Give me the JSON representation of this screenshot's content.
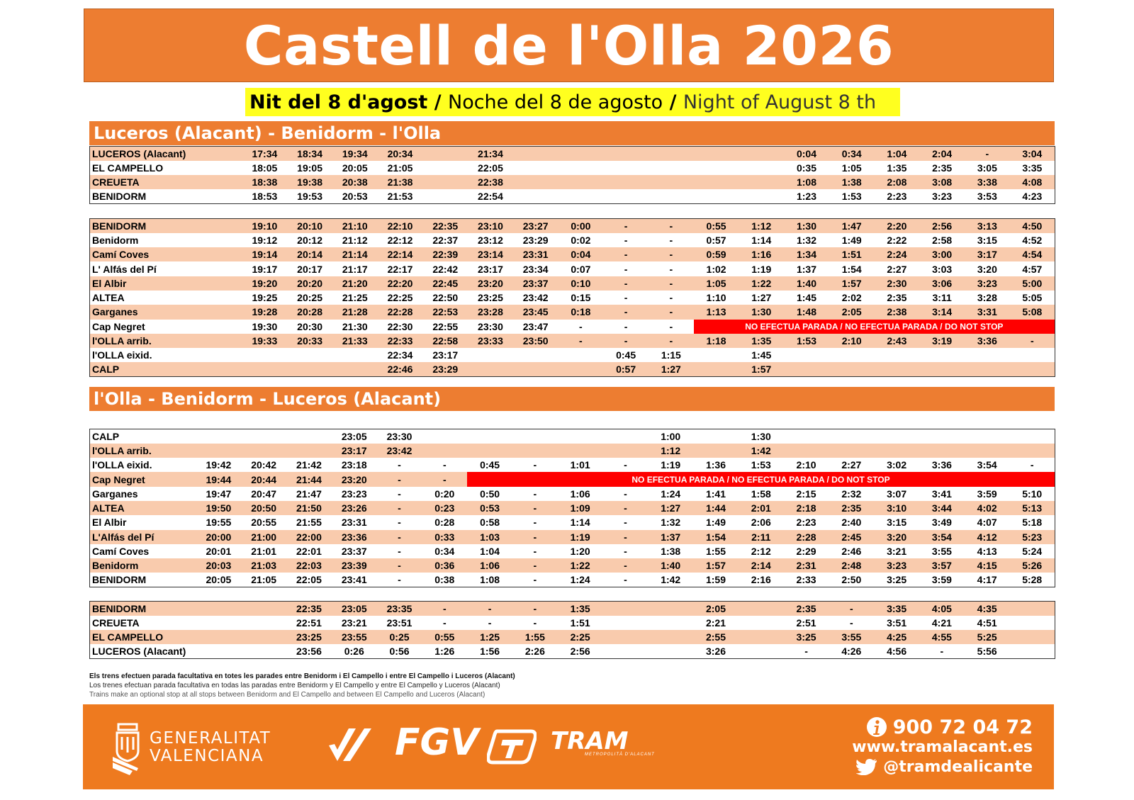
{
  "title": "Castell de l'Olla 2026",
  "subtitle": {
    "valencian": "Nit del 8 d'agost",
    "spanish": "Noche del 8 de agosto",
    "english": "Night of August 8 th",
    "separator": "/"
  },
  "sections": [
    {
      "title": "Luceros (Alacant) - Benidorm - l'Olla"
    },
    {
      "title": "l'Olla - Benidorm - Luceros (Alacant)"
    }
  ],
  "no_stop_text": "NO EFECTUA PARADA / NO EFECTUA PARADA / DO NOT STOP",
  "tables": [
    {
      "id": "t1",
      "rows": [
        {
          "style": "o",
          "cells": [
            "LUCEROS (Alacant)",
            "17:34",
            "18:34",
            "19:34",
            "20:34",
            "",
            "21:34",
            "",
            "",
            "",
            "",
            "",
            "",
            "0:04",
            "0:34",
            "1:04",
            "2:04",
            "-",
            "3:04"
          ]
        },
        {
          "style": "w",
          "cells": [
            "EL CAMPELLO",
            "18:05",
            "19:05",
            "20:05",
            "21:05",
            "",
            "22:05",
            "",
            "",
            "",
            "",
            "",
            "",
            "0:35",
            "1:05",
            "1:35",
            "2:35",
            "3:05",
            "3:35"
          ]
        },
        {
          "style": "o",
          "cells": [
            "CREUETA",
            "18:38",
            "19:38",
            "20:38",
            "21:38",
            "",
            "22:38",
            "",
            "",
            "",
            "",
            "",
            "",
            "1:08",
            "1:38",
            "2:08",
            "3:08",
            "3:38",
            "4:08"
          ]
        },
        {
          "style": "w",
          "cells": [
            "BENIDORM",
            "18:53",
            "19:53",
            "20:53",
            "21:53",
            "",
            "22:54",
            "",
            "",
            "",
            "",
            "",
            "",
            "1:23",
            "1:53",
            "2:23",
            "3:23",
            "3:53",
            "4:23"
          ]
        }
      ]
    },
    {
      "id": "t2",
      "rows": [
        {
          "style": "o",
          "cells": [
            "BENIDORM",
            "19:10",
            "20:10",
            "21:10",
            "22:10",
            "22:35",
            "23:10",
            "23:27",
            "0:00",
            "-",
            "-",
            "0:55",
            "1:12",
            "1:30",
            "1:47",
            "2:20",
            "2:56",
            "3:13",
            "4:50"
          ]
        },
        {
          "style": "w",
          "cells": [
            "Benidorm",
            "19:12",
            "20:12",
            "21:12",
            "22:12",
            "22:37",
            "23:12",
            "23:29",
            "0:02",
            "-",
            "-",
            "0:57",
            "1:14",
            "1:32",
            "1:49",
            "2:22",
            "2:58",
            "3:15",
            "4:52"
          ]
        },
        {
          "style": "o",
          "cells": [
            "Camí Coves",
            "19:14",
            "20:14",
            "21:14",
            "22:14",
            "22:39",
            "23:14",
            "23:31",
            "0:04",
            "-",
            "-",
            "0:59",
            "1:16",
            "1:34",
            "1:51",
            "2:24",
            "3:00",
            "3:17",
            "4:54"
          ]
        },
        {
          "style": "w",
          "cells": [
            "L' Alfás del Pí",
            "19:17",
            "20:17",
            "21:17",
            "22:17",
            "22:42",
            "23:17",
            "23:34",
            "0:07",
            "-",
            "-",
            "1:02",
            "1:19",
            "1:37",
            "1:54",
            "2:27",
            "3:03",
            "3:20",
            "4:57"
          ]
        },
        {
          "style": "o",
          "cells": [
            "El Albir",
            "19:20",
            "20:20",
            "21:20",
            "22:20",
            "22:45",
            "23:20",
            "23:37",
            "0:10",
            "-",
            "-",
            "1:05",
            "1:22",
            "1:40",
            "1:57",
            "2:30",
            "3:06",
            "3:23",
            "5:00"
          ]
        },
        {
          "style": "w",
          "cells": [
            "ALTEA",
            "19:25",
            "20:25",
            "21:25",
            "22:25",
            "22:50",
            "23:25",
            "23:42",
            "0:15",
            "-",
            "-",
            "1:10",
            "1:27",
            "1:45",
            "2:02",
            "2:35",
            "3:11",
            "3:28",
            "5:05"
          ]
        },
        {
          "style": "o",
          "cells": [
            "Garganes",
            "19:28",
            "20:28",
            "21:28",
            "22:28",
            "22:53",
            "23:28",
            "23:45",
            "0:18",
            "-",
            "-",
            "1:13",
            "1:30",
            "1:48",
            "2:05",
            "2:38",
            "3:14",
            "3:31",
            "5:08"
          ]
        },
        {
          "style": "w",
          "cells": [
            "Cap Negret",
            "19:30",
            "20:30",
            "21:30",
            "22:30",
            "22:55",
            "23:30",
            "23:47",
            "-",
            "-",
            "-"
          ],
          "nostop_from": 11
        },
        {
          "style": "o",
          "cells": [
            "l'OLLA arrib.",
            "19:33",
            "20:33",
            "21:33",
            "22:33",
            "22:58",
            "23:33",
            "23:50",
            "-",
            "-",
            "-",
            "1:18",
            "1:35",
            "1:53",
            "2:10",
            "2:43",
            "3:19",
            "3:36",
            "-"
          ]
        },
        {
          "style": "w",
          "cells": [
            "l'OLLA eixid.",
            "",
            "",
            "",
            "22:34",
            "23:17",
            "",
            "",
            "",
            "0:45",
            "1:15",
            "",
            "1:45",
            "",
            "",
            "",
            "",
            "",
            ""
          ]
        },
        {
          "style": "o",
          "cells": [
            "CALP",
            "",
            "",
            "",
            "22:46",
            "23:29",
            "",
            "",
            "",
            "0:57",
            "1:27",
            "",
            "1:57",
            "",
            "",
            "",
            "",
            "",
            ""
          ]
        }
      ]
    },
    {
      "id": "t3",
      "rows": [
        {
          "style": "w",
          "cells": [
            "CALP",
            "",
            "",
            "",
            "23:05",
            "23:30",
            "",
            "",
            "",
            "",
            "",
            "1:00",
            "",
            "1:30",
            "",
            "",
            "",
            "",
            "",
            ""
          ]
        },
        {
          "style": "o",
          "cells": [
            "l'OLLA arrib.",
            "",
            "",
            "",
            "23:17",
            "23:42",
            "",
            "",
            "",
            "",
            "",
            "1:12",
            "",
            "1:42",
            "",
            "",
            "",
            "",
            "",
            ""
          ]
        },
        {
          "style": "w",
          "cells": [
            "l'OLLA eixid.",
            "19:42",
            "20:42",
            "21:42",
            "23:18",
            "-",
            "-",
            "0:45",
            "-",
            "1:01",
            "-",
            "1:19",
            "1:36",
            "1:53",
            "2:10",
            "2:27",
            "3:02",
            "3:36",
            "3:54",
            "-"
          ]
        },
        {
          "style": "o",
          "cells": [
            "Cap Negret",
            "19:44",
            "20:44",
            "21:44",
            "23:20",
            "-",
            "-"
          ],
          "nostop_from": 7
        },
        {
          "style": "w",
          "cells": [
            "Garganes",
            "19:47",
            "20:47",
            "21:47",
            "23:23",
            "-",
            "0:20",
            "0:50",
            "-",
            "1:06",
            "-",
            "1:24",
            "1:41",
            "1:58",
            "2:15",
            "2:32",
            "3:07",
            "3:41",
            "3:59",
            "5:10"
          ]
        },
        {
          "style": "o",
          "cells": [
            "ALTEA",
            "19:50",
            "20:50",
            "21:50",
            "23:26",
            "-",
            "0:23",
            "0:53",
            "-",
            "1:09",
            "-",
            "1:27",
            "1:44",
            "2:01",
            "2:18",
            "2:35",
            "3:10",
            "3:44",
            "4:02",
            "5:13"
          ]
        },
        {
          "style": "w",
          "cells": [
            "El Albir",
            "19:55",
            "20:55",
            "21:55",
            "23:31",
            "-",
            "0:28",
            "0:58",
            "-",
            "1:14",
            "-",
            "1:32",
            "1:49",
            "2:06",
            "2:23",
            "2:40",
            "3:15",
            "3:49",
            "4:07",
            "5:18"
          ]
        },
        {
          "style": "o",
          "cells": [
            "L'Alfás del Pí",
            "20:00",
            "21:00",
            "22:00",
            "23:36",
            "-",
            "0:33",
            "1:03",
            "-",
            "1:19",
            "-",
            "1:37",
            "1:54",
            "2:11",
            "2:28",
            "2:45",
            "3:20",
            "3:54",
            "4:12",
            "5:23"
          ]
        },
        {
          "style": "w",
          "cells": [
            "Camí Coves",
            "20:01",
            "21:01",
            "22:01",
            "23:37",
            "-",
            "0:34",
            "1:04",
            "-",
            "1:20",
            "-",
            "1:38",
            "1:55",
            "2:12",
            "2:29",
            "2:46",
            "3:21",
            "3:55",
            "4:13",
            "5:24"
          ]
        },
        {
          "style": "o",
          "cells": [
            "Benidorm",
            "20:03",
            "21:03",
            "22:03",
            "23:39",
            "-",
            "0:36",
            "1:06",
            "-",
            "1:22",
            "-",
            "1:40",
            "1:57",
            "2:14",
            "2:31",
            "2:48",
            "3:23",
            "3:57",
            "4:15",
            "5:26"
          ]
        },
        {
          "style": "w",
          "cells": [
            "BENIDORM",
            "20:05",
            "21:05",
            "22:05",
            "23:41",
            "-",
            "0:38",
            "1:08",
            "-",
            "1:24",
            "-",
            "1:42",
            "1:59",
            "2:16",
            "2:33",
            "2:50",
            "3:25",
            "3:59",
            "4:17",
            "5:28"
          ]
        }
      ]
    },
    {
      "id": "t4",
      "rows": [
        {
          "style": "o",
          "cells": [
            "BENIDORM",
            "",
            "",
            "22:35",
            "23:05",
            "23:35",
            "-",
            "-",
            "-",
            "1:35",
            "",
            "",
            "2:05",
            "",
            "2:35",
            "-",
            "3:35",
            "4:05",
            "4:35",
            ""
          ]
        },
        {
          "style": "w",
          "cells": [
            "CREUETA",
            "",
            "",
            "22:51",
            "23:21",
            "23:51",
            "-",
            "-",
            "-",
            "1:51",
            "",
            "",
            "2:21",
            "",
            "2:51",
            "-",
            "3:51",
            "4:21",
            "4:51",
            ""
          ]
        },
        {
          "style": "o",
          "cells": [
            "EL CAMPELLO",
            "",
            "",
            "23:25",
            "23:55",
            "0:25",
            "0:55",
            "1:25",
            "1:55",
            "2:25",
            "",
            "",
            "2:55",
            "",
            "3:25",
            "3:55",
            "4:25",
            "4:55",
            "5:25",
            ""
          ]
        },
        {
          "style": "w",
          "cells": [
            "LUCEROS (Alacant)",
            "",
            "",
            "23:56",
            "0:26",
            "0:56",
            "1:26",
            "1:56",
            "2:26",
            "2:56",
            "",
            "",
            "3:26",
            "",
            "-",
            "4:26",
            "4:56",
            "-",
            "5:56",
            ""
          ]
        }
      ]
    }
  ],
  "notes": [
    "Els trens efectuen parada facultativa en totes les parades entre Benidorm i El Campello i entre El Campello i Luceros (Alacant)",
    "Los trenes efectuan parada facultativa en todas las paradas entre Benidorm y El Campello y entre El Campello y Luceros (Alacant)",
    "Trains make an optional stop at all stops between Benidorm and El Campello and between El Campello and Luceros (Alacant)"
  ],
  "footer": {
    "gv_line1": "GENERALITAT",
    "gv_line2": "VALENCIANA",
    "fgv": "FGV",
    "tram": "TRAM",
    "tram_sub": "METROPOLITÀ D'ALACANT",
    "phone": "900 72 04 72",
    "website": "www.tramalacant.es",
    "twitter": "@tramdealicante",
    "info_icon": "info-icon",
    "twitter_icon": "twitter-bird-icon"
  }
}
